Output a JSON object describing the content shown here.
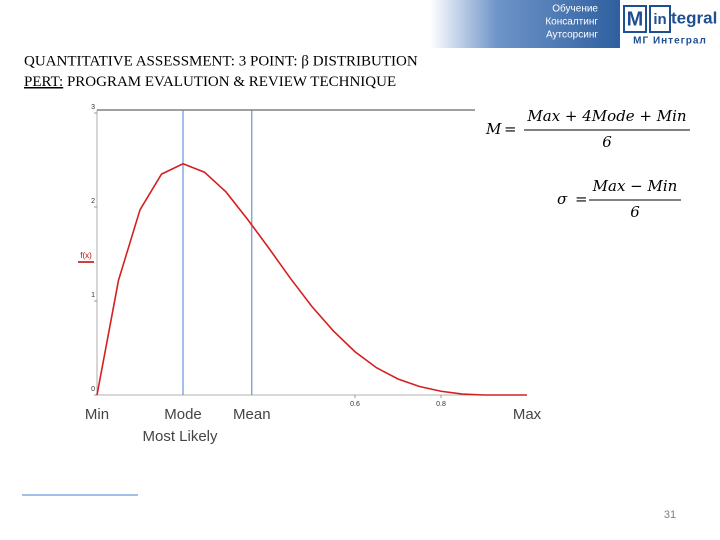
{
  "header": {
    "services": [
      "Обучение",
      "Консалтинг",
      "Аутсорсинг"
    ],
    "logo": {
      "m": "M",
      "in": "in",
      "tegral": "tegral",
      "caption": "МГ Интеграл"
    }
  },
  "title": {
    "line1": "QUANTITATIVE ASSESSMENT: 3 POINT: β DISTRIBUTION",
    "line2_underlined": "PERT:",
    "line2_rest": " PROGRAM EVALUTION & REVIEW TECHNIQUE"
  },
  "chart_data": {
    "type": "line",
    "ylabel": "f(x)",
    "x": [
      0,
      0.05,
      0.1,
      0.15,
      0.2,
      0.25,
      0.3,
      0.35,
      0.4,
      0.45,
      0.5,
      0.55,
      0.6,
      0.65,
      0.7,
      0.75,
      0.8,
      0.85,
      0.9,
      0.95,
      1
    ],
    "series": [
      {
        "color": "#d42020",
        "values": [
          0,
          1.22,
          1.97,
          2.35,
          2.46,
          2.37,
          2.16,
          1.87,
          1.56,
          1.24,
          0.94,
          0.68,
          0.46,
          0.29,
          0.17,
          0.09,
          0.04,
          0.01,
          0,
          0,
          0
        ]
      }
    ],
    "xlim": [
      0,
      1
    ],
    "ylim": [
      0,
      3
    ],
    "xticks": [
      0.6,
      0.8
    ],
    "yticks": [
      0,
      1,
      2,
      3
    ],
    "vlines": [
      0.2,
      0.36
    ],
    "vline_color": "#4a7fd0",
    "x_labels": [
      {
        "label": "Min",
        "x": 0
      },
      {
        "label": "Mode",
        "x": 0.2
      },
      {
        "label": "Mean",
        "x": 0.36
      },
      {
        "label": "Max",
        "x": 1
      }
    ],
    "sublabel": "Most Likely"
  },
  "formulas": [
    {
      "lhs": "M",
      "numerator": "Max + 4Mode + Min",
      "denominator": "6"
    },
    {
      "lhs": "σ",
      "numerator": "Max − Min",
      "denominator": "6"
    }
  ],
  "page_number": "31"
}
